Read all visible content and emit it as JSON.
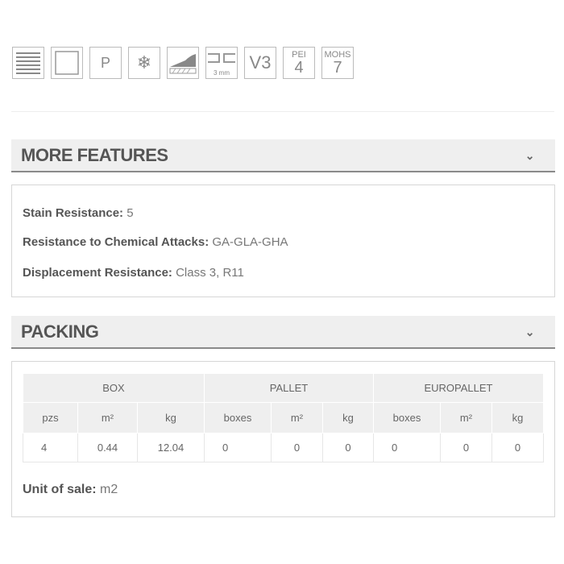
{
  "icons": [
    {
      "name": "lines-icon"
    },
    {
      "name": "square-icon"
    },
    {
      "name": "p-icon",
      "text": "P"
    },
    {
      "name": "snowflake-icon",
      "text": "❄"
    },
    {
      "name": "slope-icon"
    },
    {
      "name": "joint-3mm-icon",
      "text": "3 mm"
    },
    {
      "name": "v3-icon",
      "text": "V3"
    },
    {
      "name": "pei-icon",
      "top": "PEI",
      "bottom": "4"
    },
    {
      "name": "mohs-icon",
      "top": "MOHS",
      "bottom": "7"
    }
  ],
  "more_features": {
    "title": "MORE FEATURES",
    "chevron": "⌄",
    "items": [
      {
        "label": "Stain Resistance:",
        "value": "5"
      },
      {
        "label": "Resistance to Chemical Attacks:",
        "value": "GA-GLA-GHA"
      },
      {
        "label": "Displacement Resistance:",
        "value": "Class 3, R11"
      }
    ]
  },
  "packing": {
    "title": "PACKING",
    "chevron": "⌄",
    "groups": [
      "BOX",
      "PALLET",
      "EUROPALLET"
    ],
    "columns": [
      "pzs",
      "m²",
      "kg",
      "boxes",
      "m²",
      "kg",
      "boxes",
      "m²",
      "kg"
    ],
    "row": [
      "4",
      "0.44",
      "12.04",
      "0",
      "0",
      "0",
      "0",
      "0",
      "0"
    ],
    "unit_label": "Unit of sale:",
    "unit_value": "m2"
  }
}
